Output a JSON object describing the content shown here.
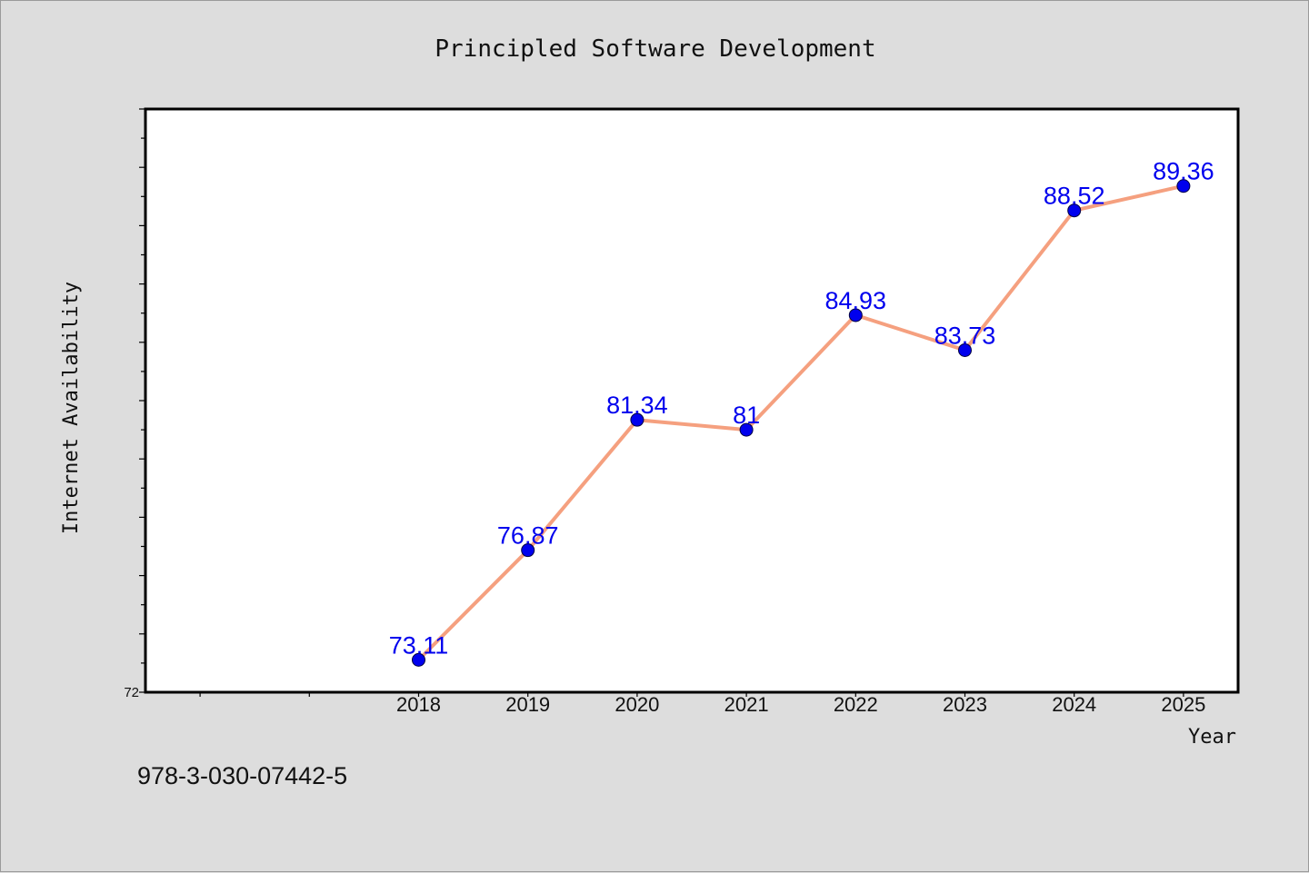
{
  "chart_data": {
    "type": "line",
    "title": "Principled Software Development",
    "xlabel": "Year",
    "ylabel": "Internet Availability",
    "categories": [
      "2018",
      "2019",
      "2020",
      "2021",
      "2022",
      "2023",
      "2024",
      "2025"
    ],
    "values": [
      73.11,
      76.87,
      81.34,
      81,
      84.93,
      83.73,
      88.52,
      89.36
    ],
    "value_labels": [
      "73.11",
      "76.87",
      "81.34",
      "81",
      "84.93",
      "83.73",
      "88.52",
      "89.36"
    ],
    "y_tick_label": "72",
    "ylim": [
      72,
      92
    ],
    "x_index_range": [
      -2.5,
      7.5
    ],
    "grid": false,
    "colors": {
      "line": "#f5a07f",
      "marker": "#0000ee",
      "label": "#0000ee",
      "plot_background": "#ffffff",
      "page_background": "#dddddd"
    }
  },
  "footer_text": "978-3-030-07442-5"
}
